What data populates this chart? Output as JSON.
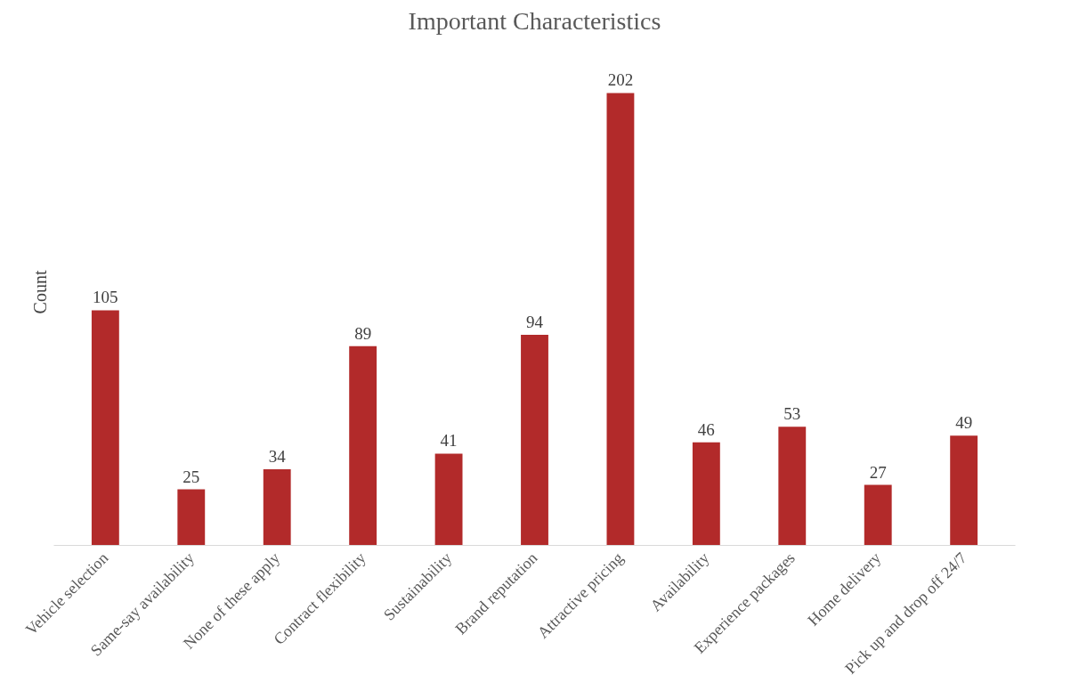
{
  "chart_data": {
    "type": "bar",
    "title": "Important Characteristics",
    "ylabel": "Count",
    "categories": [
      "Vehicle selection",
      "Same-say availability",
      "None of these apply",
      "Contract flexibility",
      "Sustainability",
      "Brand reputation",
      "Attractive pricing",
      "Availability",
      "Experience packages",
      "Home delivery",
      "Pick up and drop off 24/7"
    ],
    "values": [
      105,
      25,
      34,
      89,
      41,
      94,
      202,
      46,
      53,
      27,
      49
    ],
    "color": "#b22a2a",
    "data_labels": true,
    "grid": false
  }
}
